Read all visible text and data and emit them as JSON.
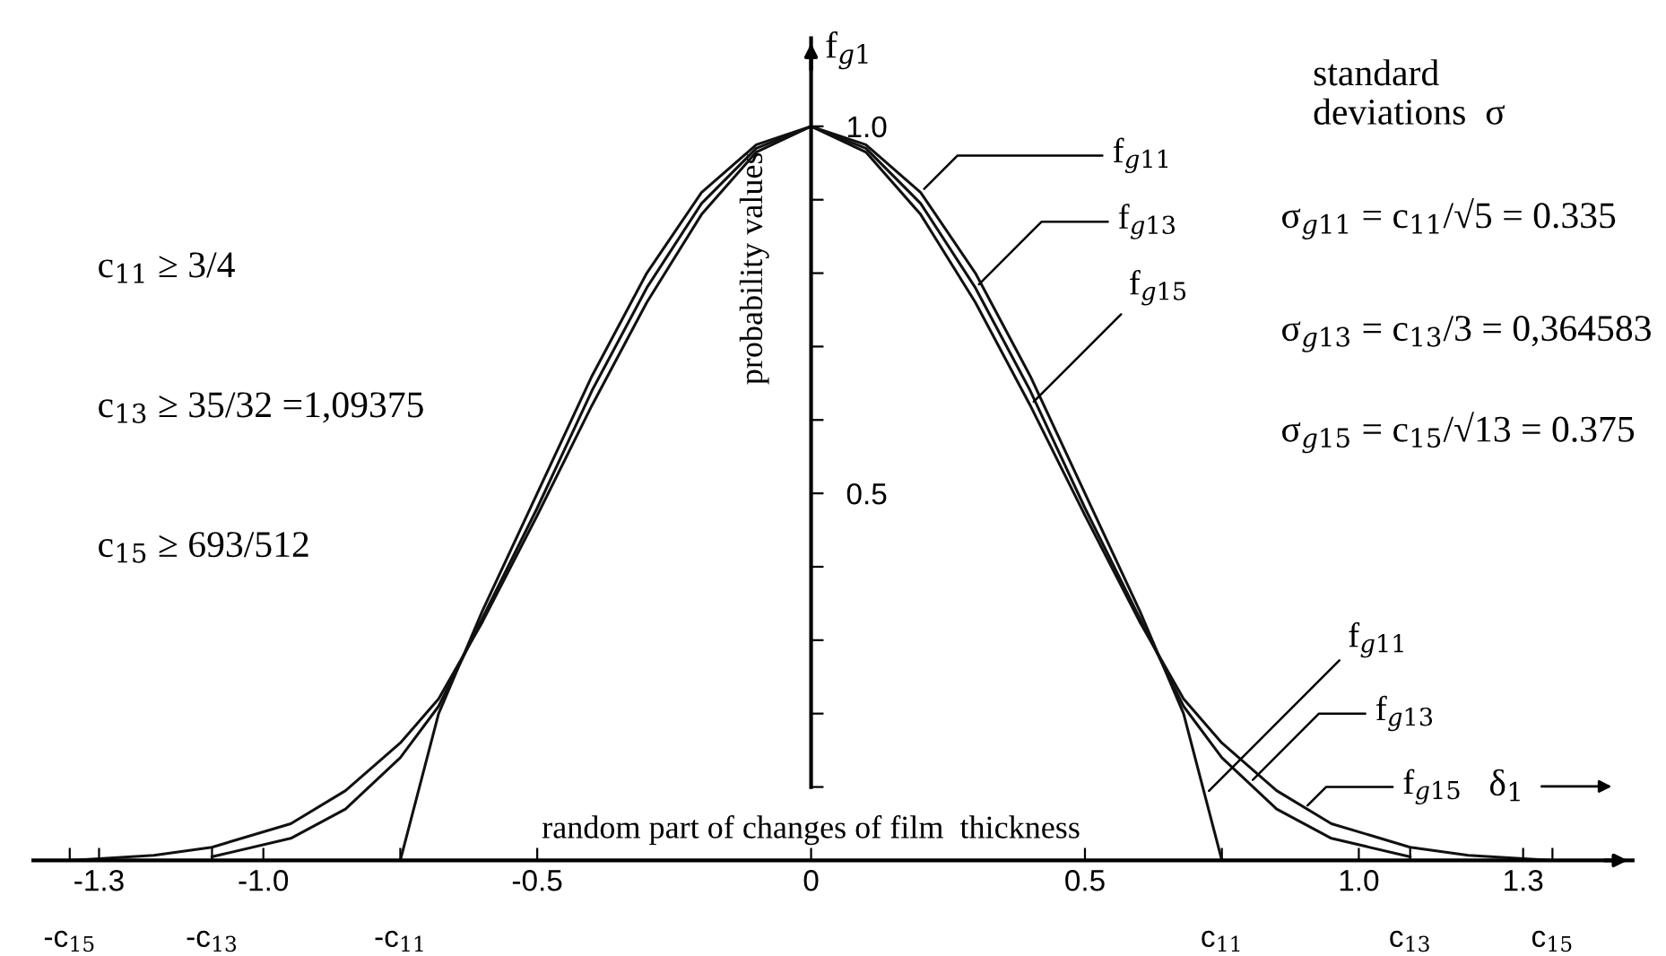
{
  "chart_data": {
    "type": "line",
    "xlabel": "random part of changes of film  thickness",
    "ylabel": "probability values",
    "x": [
      -1.353515625,
      -1.2,
      -1.09375,
      -0.95,
      -0.85,
      -0.75,
      -0.68,
      -0.6,
      -0.5,
      -0.4,
      -0.3,
      -0.2,
      -0.1,
      0,
      0.1,
      0.2,
      0.3,
      0.4,
      0.5,
      0.6,
      0.68,
      0.75,
      0.85,
      0.95,
      1.09375,
      1.2,
      1.353515625
    ],
    "series": [
      {
        "color": "#111111",
        "values": [
          null,
          null,
          null,
          null,
          null,
          0,
          0.2,
          0.34,
          0.5,
          0.66,
          0.8,
          0.91,
          0.975,
          1.0,
          0.975,
          0.91,
          0.8,
          0.66,
          0.5,
          0.34,
          0.2,
          0,
          null,
          null,
          null,
          null,
          null
        ]
      },
      {
        "color": "#111111",
        "values": [
          null,
          null,
          0.005,
          0.03,
          0.07,
          0.14,
          0.21,
          0.33,
          0.48,
          0.64,
          0.78,
          0.895,
          0.97,
          1.0,
          0.97,
          0.895,
          0.78,
          0.64,
          0.48,
          0.33,
          0.21,
          0.14,
          0.07,
          0.03,
          0.005,
          null,
          null
        ]
      },
      {
        "color": "#111111",
        "values": [
          0,
          0.007,
          0.018,
          0.05,
          0.095,
          0.16,
          0.22,
          0.325,
          0.47,
          0.62,
          0.76,
          0.88,
          0.965,
          1.0,
          0.965,
          0.88,
          0.76,
          0.62,
          0.47,
          0.325,
          0.22,
          0.16,
          0.095,
          0.05,
          0.018,
          0.007,
          0
        ]
      }
    ],
    "xlim": [
      -1.42,
      1.5
    ],
    "ylim": [
      0,
      1.12
    ],
    "xticks": [
      {
        "value": -1.353515625,
        "label": null
      },
      -1.3,
      {
        "value": -1.09375,
        "label": null
      },
      {
        "value": -1.0,
        "label": "-1.0"
      },
      {
        "value": -0.75,
        "label": null
      },
      -0.5,
      0,
      0.5,
      {
        "value": 0.75,
        "label": null
      },
      {
        "value": 1.0,
        "label": "1.0"
      },
      {
        "value": 1.09375,
        "label": null
      },
      1.3,
      {
        "value": 1.353515625,
        "label": null
      }
    ],
    "yticks": [
      {
        "value": 0.1,
        "label": null
      },
      {
        "value": 0.2,
        "label": null
      },
      {
        "value": 0.3,
        "label": null
      },
      {
        "value": 0.4,
        "label": null
      },
      0.5,
      {
        "value": 0.6,
        "label": null
      },
      {
        "value": 0.7,
        "label": null
      },
      {
        "value": 0.8,
        "label": null
      },
      {
        "value": 0.9,
        "label": null
      },
      {
        "value": 1.0,
        "label": "1.0"
      }
    ],
    "grid": false,
    "legend": false,
    "marker": "none",
    "line_style": "solid",
    "annotations": [
      {
        "text": "f$_{g11}$",
        "x": 0.2,
        "y": 0.91
      },
      {
        "text": "f$_{g13}$",
        "x": 0.3,
        "y": 0.78
      },
      {
        "text": "f$_{g15}$",
        "x": 0.4,
        "y": 0.62
      },
      {
        "text": "f$_{g11}$",
        "x": 0.72,
        "y": 0.09
      },
      {
        "text": "f$_{g13}$",
        "x": 0.8,
        "y": 0.105
      },
      {
        "text": "f$_{g15}$",
        "x": 0.9,
        "y": 0.07
      },
      {
        "text": "-c$_{15}$",
        "x": -1.353515625,
        "y": 0
      },
      {
        "text": "-c$_{13}$",
        "x": -1.09375,
        "y": 0
      },
      {
        "text": "-c$_{11}$",
        "x": -0.75,
        "y": 0
      },
      {
        "text": "c$_{11}$",
        "x": 0.75,
        "y": 0
      },
      {
        "text": "c$_{13}$",
        "x": 1.09375,
        "y": 0
      },
      {
        "text": "c$_{15}$",
        "x": 1.353515625,
        "y": 0
      },
      "standard\ndeviations  σ",
      "σ$_{g11}$ = c$_{11}$/√5 = 0.335",
      "σ$_{g13}$ = c$_{13}$/3 = 0,364583",
      "σ$_{g15}$ = c$_{15}$/√13 = 0.375",
      "c$_{11}$ ≥ 3/4",
      "c$_{13}$ ≥ 35/32 =1,09375",
      "c$_{15}$ ≥ 693/512",
      "f$_{g1}$",
      "δ$_{1}$"
    ]
  }
}
